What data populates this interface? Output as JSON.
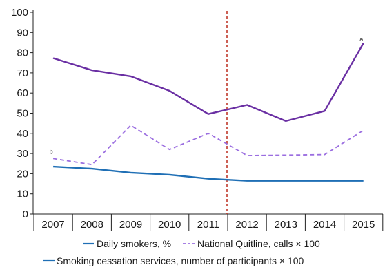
{
  "chart_data": {
    "type": "line",
    "categories": [
      "2007",
      "2008",
      "2009",
      "2010",
      "2011",
      "2012",
      "2013",
      "2014",
      "2015"
    ],
    "ylim": [
      0,
      100
    ],
    "yticks": [
      "0",
      "10",
      "20",
      "30",
      "40",
      "50",
      "60",
      "70",
      "80",
      "90",
      "100"
    ],
    "grid": false,
    "vertical_marker": {
      "after": "2011",
      "color": "#c0392b",
      "style": "dashed"
    },
    "series": [
      {
        "name": "Daily smokers, %",
        "color": "#1f6fb5",
        "dash": "solid",
        "values": [
          23.5,
          22.5,
          20.5,
          19.5,
          17.5,
          16.5,
          16.5,
          16.5,
          16.5
        ]
      },
      {
        "name": "National Quitline, calls × 100",
        "color": "#9b6ee0",
        "dash": "dashed",
        "values": [
          27.5,
          24.5,
          44,
          32,
          40,
          29,
          29.2,
          29.5,
          41.5
        ]
      },
      {
        "name": "Smoking cessation services, number of participants × 100",
        "color": "#6a2fa3",
        "dash": "solid",
        "values": [
          77.3,
          71.3,
          68.3,
          61.1,
          49.6,
          54.1,
          46.1,
          51.1,
          84.7
        ]
      }
    ],
    "annotations": [
      {
        "text": "a",
        "x": "2015"
      },
      {
        "text": "b",
        "x": "2007"
      }
    ],
    "legend_placement": "bottom"
  }
}
